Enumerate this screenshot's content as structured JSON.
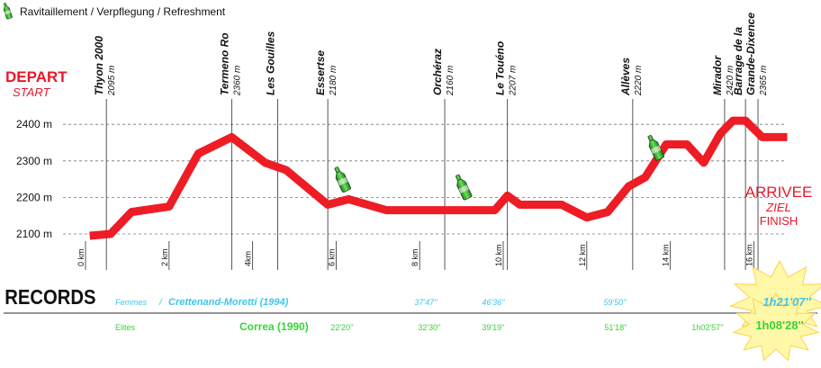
{
  "legend": {
    "label": "Ravitaillement / Verpflegung / Refreshment",
    "icon": "bottle-icon"
  },
  "depart": {
    "title": "DEPART",
    "subtitle": "START",
    "color": "#e8182b"
  },
  "arrivee": {
    "title": "ARRIVEE",
    "subtitle1": "ZIEL",
    "subtitle2": "FINISH",
    "color": "#e8182b"
  },
  "chart_data": {
    "type": "line",
    "xlabel": "",
    "ylabel": "",
    "xlim": [
      0,
      17.5
    ],
    "ylim": [
      2060,
      2440
    ],
    "y_ticks": [
      {
        "value": 2100,
        "label": "2100 m"
      },
      {
        "value": 2200,
        "label": "2200 m"
      },
      {
        "value": 2300,
        "label": "2300 m"
      },
      {
        "value": 2400,
        "label": "2400 m"
      }
    ],
    "x_ticks": [
      {
        "value": 0,
        "label": "0 km"
      },
      {
        "value": 2,
        "label": "2 km"
      },
      {
        "value": 4,
        "label": "4km"
      },
      {
        "value": 6,
        "label": "6 km"
      },
      {
        "value": 8,
        "label": "8 km"
      },
      {
        "value": 10,
        "label": "10 km"
      },
      {
        "value": 12,
        "label": "12 km"
      },
      {
        "value": 14,
        "label": "14 km"
      },
      {
        "value": 16,
        "label": "16 km"
      }
    ],
    "series": [
      {
        "color": "#ee1c25",
        "x": [
          0.1,
          0.6,
          1.1,
          2.0,
          2.7,
          3.5,
          4.3,
          4.8,
          5.8,
          6.3,
          7.2,
          8.0,
          9.0,
          9.8,
          10.1,
          10.4,
          11.4,
          12.0,
          12.5,
          13.0,
          13.4,
          13.9,
          14.4,
          14.8,
          15.2,
          15.5,
          15.8,
          16.2,
          16.8
        ],
        "y": [
          2095,
          2100,
          2160,
          2175,
          2320,
          2365,
          2295,
          2275,
          2180,
          2195,
          2165,
          2165,
          2165,
          2165,
          2205,
          2180,
          2180,
          2145,
          2160,
          2230,
          2255,
          2345,
          2345,
          2295,
          2375,
          2410,
          2410,
          2365,
          2365
        ]
      }
    ],
    "places": [
      {
        "name": "Thyon 2000",
        "alt": "2095 m",
        "x": 0.5
      },
      {
        "name": "Termeno Ro",
        "alt": "2360 m",
        "x": 3.5
      },
      {
        "name": "Les Gouilles",
        "alt": "",
        "x": 4.6
      },
      {
        "name": "Essertse",
        "alt": "2180 m",
        "x": 5.8
      },
      {
        "name": "Orchéraz",
        "alt": "2160 m",
        "x": 8.6
      },
      {
        "name": "Le Touéno",
        "alt": "2207 m",
        "x": 10.1
      },
      {
        "name": "Allèves",
        "alt": "2220 m",
        "x": 13.1
      },
      {
        "name": "Mirador",
        "alt": "2420 m",
        "x": 15.3
      },
      {
        "name": "Barrage de la",
        "alt": "",
        "x": 15.8
      },
      {
        "name": "Grande-Dixence",
        "alt": "2365 m",
        "x": 16.1
      }
    ],
    "refreshments_km": [
      6.0,
      8.9,
      13.5
    ]
  },
  "records": {
    "title": "RECORDS",
    "women": {
      "label": "Femmes",
      "sep": "/",
      "holder": "Crettenand-Moretti (1994)",
      "splits": [
        "37'47''",
        "46'36''",
        "59'50''"
      ],
      "final": "1h21'07''",
      "color": "#3ec6ea"
    },
    "elites": {
      "label": "Elites",
      "holder": "Correa (1990)",
      "splits": [
        "22'20''",
        "32'30''",
        "39'19''",
        "51'18''",
        "1h02'57''"
      ],
      "final": "1h08'28''",
      "color": "#38d338"
    },
    "star_color": "#fff8a8"
  }
}
